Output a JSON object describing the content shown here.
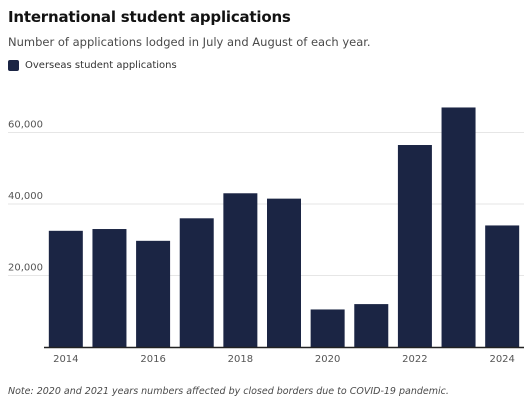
{
  "chart_data": {
    "type": "bar",
    "title": "International student applications",
    "subtitle": "Number of applications lodged in July and August of each year.",
    "note": "Note: 2020 and 2021 years numbers affected by closed borders due to COVID-19 pandemic.",
    "series": [
      {
        "name": "Overseas student applications",
        "color": "#1b2544",
        "values": [
          32500,
          33000,
          29700,
          36000,
          43000,
          41500,
          10500,
          12000,
          56500,
          67000,
          34000
        ]
      }
    ],
    "categories": [
      "2014",
      "2015",
      "2016",
      "2017",
      "2018",
      "2019",
      "2020",
      "2021",
      "2022",
      "2023",
      "2024"
    ],
    "x_tick_labels": [
      "2014",
      "2016",
      "2018",
      "2020",
      "2022",
      "2024"
    ],
    "y_ticks": [
      20000,
      40000,
      60000
    ],
    "y_tick_labels": [
      "20,000",
      "40,000",
      "60,000"
    ],
    "ylim": [
      0,
      70000
    ],
    "xlabel": "",
    "ylabel": "",
    "grid": true,
    "legend_position": "top-left"
  }
}
